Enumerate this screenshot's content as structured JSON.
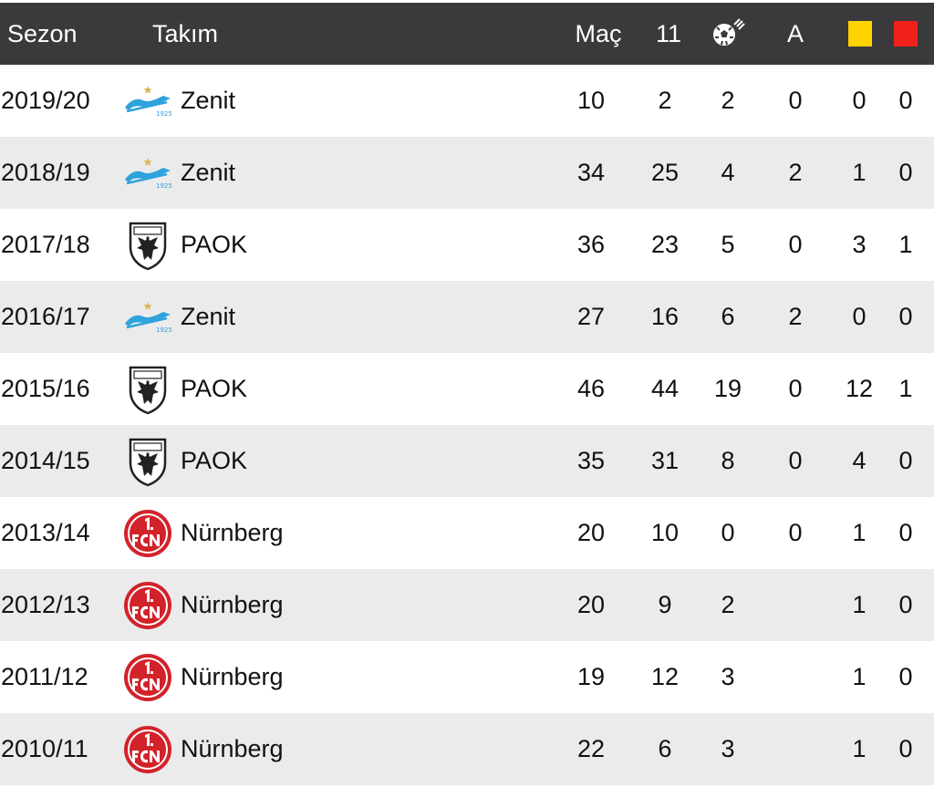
{
  "header": {
    "season": "Sezon",
    "team": "Takım",
    "matches": "Maç",
    "starts": "11",
    "goals_icon": "soccer-ball-icon",
    "assists": "A",
    "yellow_icon": "yellow-card-icon",
    "red_icon": "red-card-icon"
  },
  "colors": {
    "header_bg": "#3a3a3c",
    "row_alt_bg": "#ebebeb",
    "yellow_card": "#ffd200",
    "red_card": "#f0201a",
    "zenit_blue": "#2ea3dc",
    "nurnberg_red": "#d2222a"
  },
  "rows": [
    {
      "season": "2019/20",
      "team": "Zenit",
      "logo": "zenit-logo",
      "matches": "10",
      "starts": "2",
      "goals": "2",
      "assists": "0",
      "yellow": "0",
      "red": "0"
    },
    {
      "season": "2018/19",
      "team": "Zenit",
      "logo": "zenit-logo",
      "matches": "34",
      "starts": "25",
      "goals": "4",
      "assists": "2",
      "yellow": "1",
      "red": "0"
    },
    {
      "season": "2017/18",
      "team": "PAOK",
      "logo": "paok-logo",
      "matches": "36",
      "starts": "23",
      "goals": "5",
      "assists": "0",
      "yellow": "3",
      "red": "1"
    },
    {
      "season": "2016/17",
      "team": "Zenit",
      "logo": "zenit-logo",
      "matches": "27",
      "starts": "16",
      "goals": "6",
      "assists": "2",
      "yellow": "0",
      "red": "0"
    },
    {
      "season": "2015/16",
      "team": "PAOK",
      "logo": "paok-logo",
      "matches": "46",
      "starts": "44",
      "goals": "19",
      "assists": "0",
      "yellow": "12",
      "red": "1"
    },
    {
      "season": "2014/15",
      "team": "PAOK",
      "logo": "paok-logo",
      "matches": "35",
      "starts": "31",
      "goals": "8",
      "assists": "0",
      "yellow": "4",
      "red": "0"
    },
    {
      "season": "2013/14",
      "team": "Nürnberg",
      "logo": "nurnberg-logo",
      "matches": "20",
      "starts": "10",
      "goals": "0",
      "assists": "0",
      "yellow": "1",
      "red": "0"
    },
    {
      "season": "2012/13",
      "team": "Nürnberg",
      "logo": "nurnberg-logo",
      "matches": "20",
      "starts": "9",
      "goals": "2",
      "assists": "",
      "yellow": "1",
      "red": "0"
    },
    {
      "season": "2011/12",
      "team": "Nürnberg",
      "logo": "nurnberg-logo",
      "matches": "19",
      "starts": "12",
      "goals": "3",
      "assists": "",
      "yellow": "1",
      "red": "0"
    },
    {
      "season": "2010/11",
      "team": "Nürnberg",
      "logo": "nurnberg-logo",
      "matches": "22",
      "starts": "6",
      "goals": "3",
      "assists": "",
      "yellow": "1",
      "red": "0"
    }
  ]
}
